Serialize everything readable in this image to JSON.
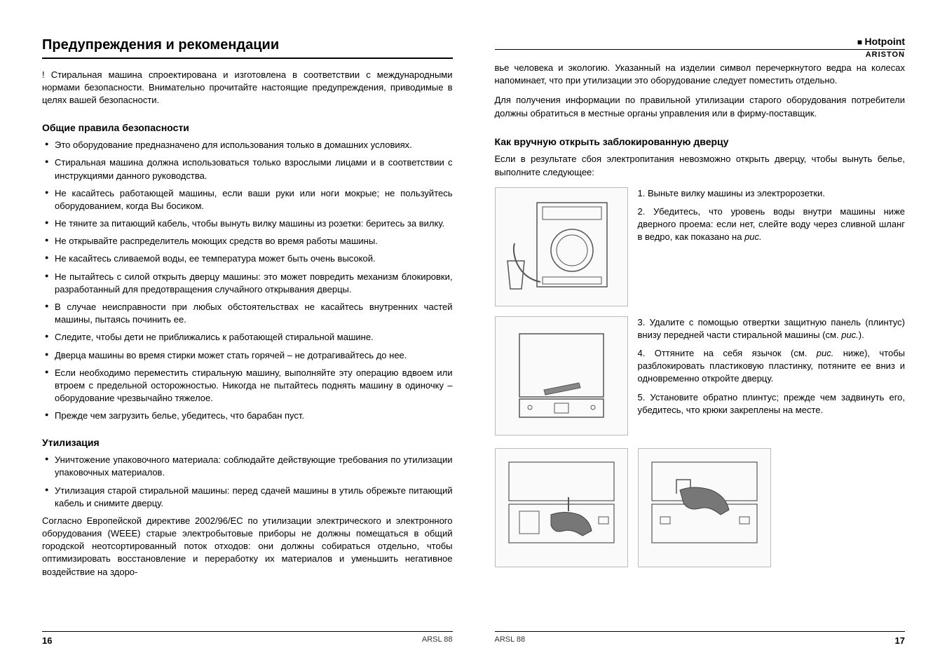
{
  "left": {
    "title": "Предупреждения и рекомендации",
    "intro": "! Стиральная машина спроектирована и изготовлена в соответствии с международными нормами безопасности. Внимательно прочитайте настоящие предупреждения, приводимые в целях вашей безопасности.",
    "h_safety": "Общие правила безопасности",
    "safety_items": [
      "Это оборудование предназначено для использования только в домашних условиях.",
      "Стиральная машина должна использоваться только взрослыми лицами и в соответствии с инструкциями данного руководства.",
      "Не касайтесь работающей машины, если ваши руки или ноги мокрые; не пользуйтесь оборудованием, когда Вы босиком.",
      "Не тяните за питающий кабель, чтобы вынуть вилку машины из розетки: беритесь за вилку.",
      "Не открывайте распределитель моющих средств во время работы машины.",
      "Не касайтесь сливаемой воды, ее температура может быть очень высокой.",
      "Не пытайтесь с силой открыть дверцу машины: это может повредить механизм блокировки, разработанный для предотвращения случайного открывания дверцы.",
      "В случае неисправности при любых обстоятельствах не касайтесь внутренних частей машины, пытаясь починить ее.",
      "Следите, чтобы дети не приближались к работающей стиральной машине.",
      "Дверца машины во время стирки может стать горячей – не дотрагивайтесь до нее.",
      "Если необходимо переместить стиральную машину, выполняйте эту операцию вдвоем или втроем с предельной осторожностью. Никогда не пытайтесь поднять машину в одиночку – оборудование чрезвычайно тяжелое.",
      "Прежде чем загрузить белье, убедитесь, что барабан пуст."
    ],
    "h_disposal": "Утилизация",
    "disposal_items": [
      "Уничтожение упаковочного материала: соблюдайте действующие требования по утилизации упаковочных материалов.",
      "Утилизация старой стиральной машины: перед сдачей машины в утиль обрежьте питающий кабель и снимите дверцу."
    ],
    "weee": "Согласно Европейской директиве 2002/96/EC по утилизации электрического и электронного оборудования (WEEE) старые электробытовые приборы не должны помещаться в общий городской неотсортированный поток отходов: они должны собираться отдельно, чтобы оптимизировать восстановление и переработку их материалов и уменьшить негативное воздействие на здоро-"
  },
  "right": {
    "brand_top": "Hotpoint",
    "brand_bottom": "ARISTON",
    "cont1": "вье человека и экологию. Указанный на изделии символ перечеркнутого ведра на колесах напоминает, что при утилизации это оборудование следует поместить отдельно.",
    "cont2": "Для получения информации по правильной утилизации старого оборудования потребители должны обратиться в местные органы управления или в фирму-поставщик.",
    "h_door": "Как вручную открыть заблокированную дверцу",
    "door_intro": "Если в результате сбоя электропитания невозможно открыть дверцу, чтобы вынуть белье, выполните следующее:",
    "step1": "1. Выньте вилку машины из электророзетки.",
    "step2a": "2. Убедитесь, что уровень воды внутри машины ниже дверного проема: если нет, слейте воду через сливной шланг в ведро, как показано на ",
    "step2b": "рис.",
    "step3a": "3. Удалите с помощью отвертки защитную панель (плинтус) внизу передней части стиральной машины (см. ",
    "step3b": "рис.",
    "step3c": ").",
    "step4a": "4. Оттяните на себя язычок (см. ",
    "step4b": "рис.",
    "step4c": " ниже), чтобы разблокировать пластиковую пластинку, потяните ее вниз и одновременно откройте дверцу.",
    "step5": "5. Установите обратно плинтус; прежде чем задвинуть его, убедитесь, что крюки закреплены на месте."
  },
  "footer": {
    "model": "ARSL 88",
    "page_left": "16",
    "page_right": "17"
  }
}
